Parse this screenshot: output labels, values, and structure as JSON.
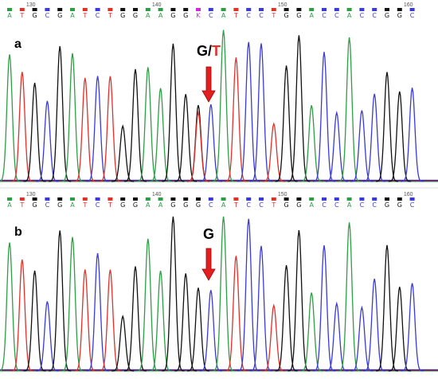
{
  "panels": [
    {
      "label": "a",
      "ruler": [
        130,
        140,
        150,
        160
      ],
      "bases": [
        "A",
        "T",
        "G",
        "C",
        "G",
        "A",
        "T",
        "C",
        "T",
        "G",
        "G",
        "A",
        "A",
        "G",
        "G",
        "K",
        "C",
        "A",
        "T",
        "C",
        "C",
        "T",
        "G",
        "G",
        "A",
        "C",
        "C",
        "A",
        "C",
        "C",
        "G",
        "G",
        "C"
      ],
      "call": [
        "G",
        "/",
        "T"
      ]
    },
    {
      "label": "b",
      "ruler": [
        130,
        140,
        150,
        160
      ],
      "bases": [
        "A",
        "T",
        "G",
        "C",
        "G",
        "A",
        "T",
        "C",
        "T",
        "G",
        "G",
        "A",
        "A",
        "G",
        "G",
        "G",
        "C",
        "A",
        "T",
        "C",
        "C",
        "T",
        "G",
        "G",
        "A",
        "C",
        "C",
        "A",
        "C",
        "C",
        "G",
        "G",
        "C"
      ],
      "call": [
        "G"
      ]
    }
  ]
}
